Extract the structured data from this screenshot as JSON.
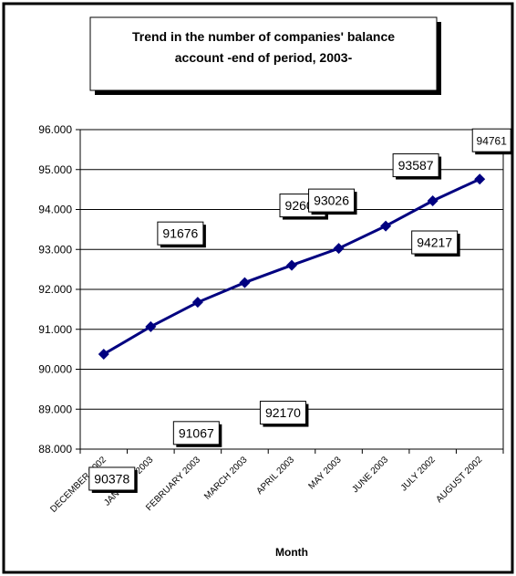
{
  "chart_data": {
    "type": "line",
    "title_lines": [
      "Trend in the number of companies' balance",
      "account -end of period, 2003-"
    ],
    "xlabel": "Month",
    "ylabel": "",
    "categories": [
      "DECEMBER 2002",
      "JANUARY 2003",
      "FEBRUARY 2003",
      "MARCH 2003",
      "APRIL 2003",
      "MAY 2003",
      "JUNE 2003",
      "JULY 2002",
      "AUGUST 2002"
    ],
    "series": [
      {
        "values": [
          90378,
          91067,
          91676,
          92170,
          92604,
          93026,
          93587,
          94217,
          94761
        ],
        "data_labels": [
          "90378",
          "91067",
          "91676",
          "92170",
          "92604",
          "93026",
          "93587",
          "94217",
          "94761"
        ],
        "color": "#000080",
        "marker": "diamond"
      }
    ],
    "yticks": [
      88000,
      89000,
      90000,
      91000,
      92000,
      93000,
      94000,
      95000,
      96000
    ],
    "ytick_labels": [
      "88.000",
      "89.000",
      "90.000",
      "91.000",
      "92.000",
      "93.000",
      "94.000",
      "95.000",
      "96.000"
    ],
    "ylim": [
      88000,
      96000
    ],
    "grid": true,
    "legend": "none"
  }
}
